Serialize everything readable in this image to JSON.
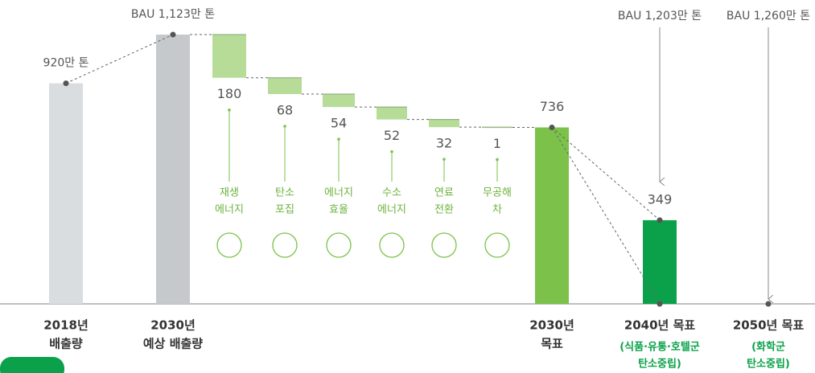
{
  "chart_data": {
    "type": "waterfall",
    "categories": [
      [
        "2018년",
        "배출량"
      ],
      [
        "2030년",
        "예상 배출량"
      ],
      [
        "재생",
        "에너지"
      ],
      [
        "탄소",
        "포집"
      ],
      [
        "에너지",
        "효율"
      ],
      [
        "수소",
        "에너지"
      ],
      [
        "연료",
        "전환"
      ],
      [
        "무공해",
        "차"
      ],
      [
        "2030년",
        "목표"
      ],
      [
        "2040년 목표"
      ],
      [
        "2050년 목표"
      ]
    ],
    "kinds": [
      "total",
      "total",
      "decrease",
      "decrease",
      "decrease",
      "decrease",
      "decrease",
      "decrease",
      "total",
      "total",
      "total"
    ],
    "values": [
      920,
      1123,
      180,
      68,
      54,
      52,
      32,
      1,
      736,
      349,
      0
    ],
    "value_labels": [
      "920만 톤",
      "BAU 1,123만 톤",
      "180",
      "68",
      "54",
      "52",
      "32",
      "1",
      "736",
      "349",
      null
    ],
    "colors": [
      "#d9dde0",
      "#c5c9cb",
      "#b6dc98",
      "#b6dc98",
      "#b6dc98",
      "#b6dc98",
      "#b6dc98",
      "#b6dc98",
      "#7cc24a",
      "#0ba14a",
      "#0ba14a"
    ],
    "notes": [
      [
        "(식품·유통·호텔군",
        "탄소중립)"
      ],
      [
        "(화학군",
        "탄소중립)"
      ]
    ],
    "bau_labels": [
      "BAU 1,203만 톤",
      "BAU 1,260만 톤"
    ],
    "ylim": [
      0,
      1150
    ]
  }
}
